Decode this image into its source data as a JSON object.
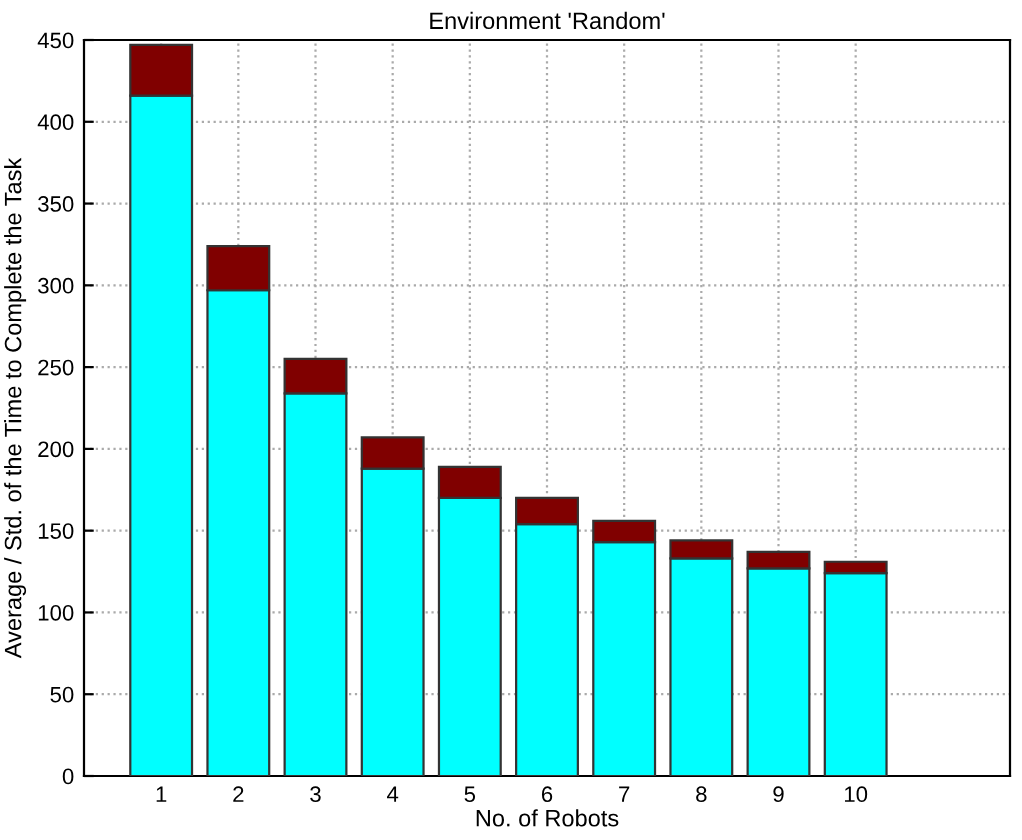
{
  "chart_data": {
    "type": "bar",
    "title": "Environment 'Random'",
    "xlabel": "No. of Robots",
    "ylabel": "Average / Std. of the Time to Complete the Task",
    "stacked": true,
    "x": [
      1,
      2,
      3,
      4,
      5,
      6,
      7,
      8,
      9,
      10
    ],
    "xlim": [
      0,
      12
    ],
    "xticks": [
      1,
      2,
      3,
      4,
      5,
      6,
      7,
      8,
      9,
      10
    ],
    "ylim": [
      0,
      450
    ],
    "yticks": [
      0,
      50,
      100,
      150,
      200,
      250,
      300,
      350,
      400,
      450
    ],
    "grid": true,
    "series": [
      {
        "color": "#00ffff",
        "values": [
          416,
          297,
          234,
          188,
          170,
          154,
          143,
          133,
          127,
          124
        ]
      },
      {
        "color": "#800000",
        "values": [
          31,
          27,
          21,
          19,
          19,
          16,
          13,
          11,
          10,
          7
        ]
      }
    ]
  }
}
